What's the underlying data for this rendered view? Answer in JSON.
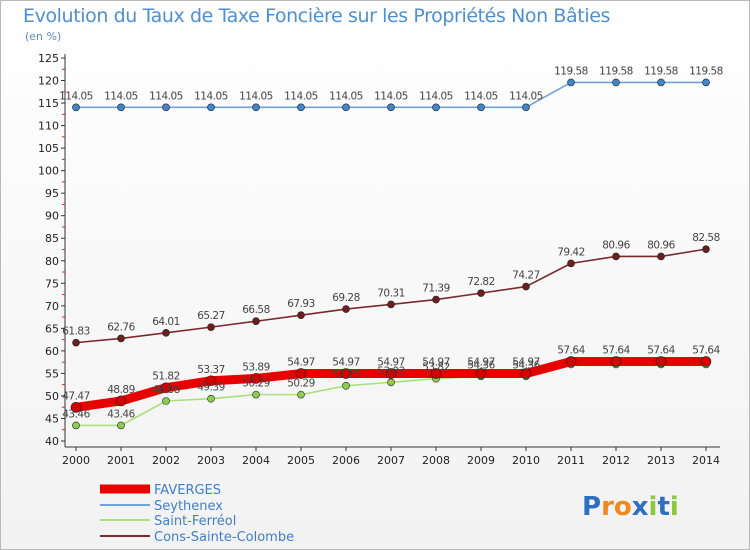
{
  "chart_data": {
    "type": "line",
    "title": "Evolution du Taux de Taxe Foncière sur les Propriétés Non Bâties",
    "subtitle": "(en %)",
    "xlabel": "",
    "ylabel": "(en %)",
    "ylim": [
      40,
      125
    ],
    "ytick_step": 5,
    "grid": false,
    "categories": [
      "2000",
      "2001",
      "2002",
      "2003",
      "2004",
      "2005",
      "2006",
      "2007",
      "2008",
      "2009",
      "2010",
      "2011",
      "2012",
      "2013",
      "2014"
    ],
    "series": [
      {
        "name": "FAVERGES",
        "color": "#e80000",
        "marker_color": "#d40000",
        "values": [
          47.47,
          48.89,
          51.82,
          53.37,
          53.89,
          54.97,
          54.97,
          54.97,
          54.97,
          54.97,
          54.97,
          57.64,
          57.64,
          57.64,
          57.64
        ],
        "labels": [
          "47.47",
          "48.89",
          "51.82",
          "53.37",
          "53.89",
          "54.97",
          "54.97",
          "54.97",
          "54.97",
          "54.97",
          "54.97",
          "57.64",
          "57.64",
          "57.64",
          "57.64"
        ]
      },
      {
        "name": "Seythenex",
        "color": "#6fa3d6",
        "marker_color": "#3f86cb",
        "values": [
          114.05,
          114.05,
          114.05,
          114.05,
          114.05,
          114.05,
          114.05,
          114.05,
          114.05,
          114.05,
          114.05,
          119.58,
          119.58,
          119.58,
          119.58
        ],
        "labels": [
          "114.05",
          "114.05",
          "114.05",
          "114.05",
          "114.05",
          "114.05",
          "114.05",
          "114.05",
          "114.05",
          "114.05",
          "114.05",
          "119.58",
          "119.58",
          "119.58",
          "119.58"
        ]
      },
      {
        "name": "Saint-Ferréol",
        "color": "#a9e07c",
        "marker_color": "#8acd50",
        "values": [
          43.46,
          43.46,
          48.88,
          49.39,
          50.29,
          50.29,
          52.25,
          53.03,
          53.82,
          54.36,
          54.36,
          57.0,
          57.0,
          57.0,
          57.0
        ],
        "labels": [
          "43.46",
          "43.46",
          "48.88",
          "49.39",
          "50.29",
          "50.29",
          "52.25",
          "53.03",
          "53.82",
          "54.36",
          "54.36",
          "",
          "",
          "",
          ""
        ]
      },
      {
        "name": "Cons-Sainte-Colombe",
        "color": "#7a2a2a",
        "marker_color": "#6b1f1f",
        "values": [
          61.83,
          62.76,
          64.01,
          65.27,
          66.58,
          67.93,
          69.28,
          70.31,
          71.39,
          72.82,
          74.27,
          79.42,
          80.96,
          80.96,
          82.58
        ],
        "labels": [
          "61.83",
          "62.76",
          "64.01",
          "65.27",
          "66.58",
          "67.93",
          "69.28",
          "70.31",
          "71.39",
          "72.82",
          "74.27",
          "79.42",
          "80.96",
          "80.96",
          "82.58"
        ]
      }
    ],
    "legend_position": "bottom-left"
  },
  "logo": {
    "text": "Proxiti",
    "letters": [
      "P",
      "r",
      "o",
      "x",
      "i",
      "t",
      "i"
    ],
    "colors": [
      "#2f6fc0",
      "#f08a1c",
      "#f08a1c",
      "#2f6fc0",
      "#8dc63f",
      "#2f6fc0",
      "#8dc63f"
    ]
  }
}
